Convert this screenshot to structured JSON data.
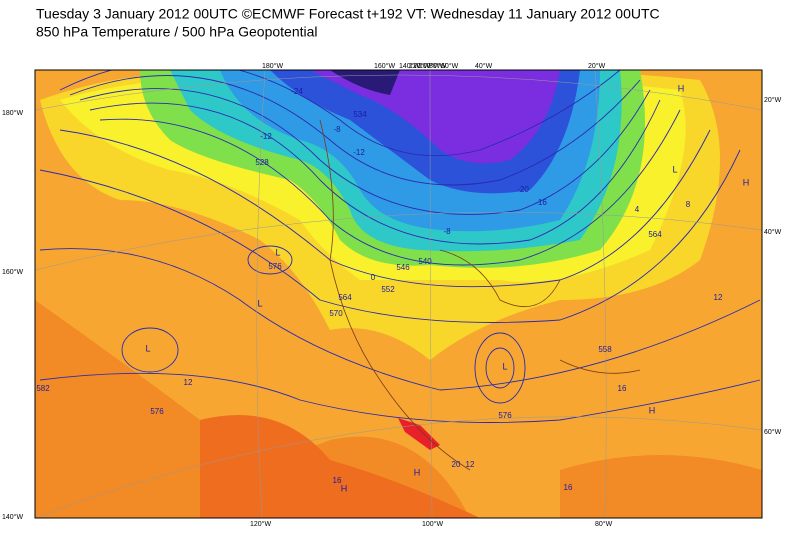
{
  "header": {
    "line1": "Tuesday 3 January 2012 00UTC ©ECMWF Forecast t+192 VT: Wednesday 11 January 2012 00UTC",
    "line2": "850 hPa Temperature / 500 hPa Geopotential"
  },
  "frame_labels": {
    "left": [
      "180°W",
      "160°W",
      "140°W"
    ],
    "top": [
      "180°W",
      "160°W",
      "140°W",
      "120°W",
      "100°W",
      "80°W",
      "60°W",
      "40°W",
      "20°W"
    ],
    "right": [
      "20°W",
      "40°W",
      "60°W"
    ],
    "bottom": [
      "120°W",
      "100°W",
      "80°W"
    ]
  },
  "contour_labels": [
    "-24",
    "-12",
    "-8",
    "-12",
    "528",
    "-16",
    "-20",
    "-8",
    "546",
    "552",
    "564",
    "570",
    "576",
    "12",
    "582",
    "576",
    "576",
    "20",
    "12",
    "16",
    "16",
    "12",
    "8",
    "4",
    "564",
    "558",
    "16",
    "0",
    "534",
    "540"
  ],
  "pressure_centres": [
    "L",
    "L",
    "L",
    "L",
    "L",
    "H",
    "H",
    "H",
    "H",
    "H"
  ]
}
